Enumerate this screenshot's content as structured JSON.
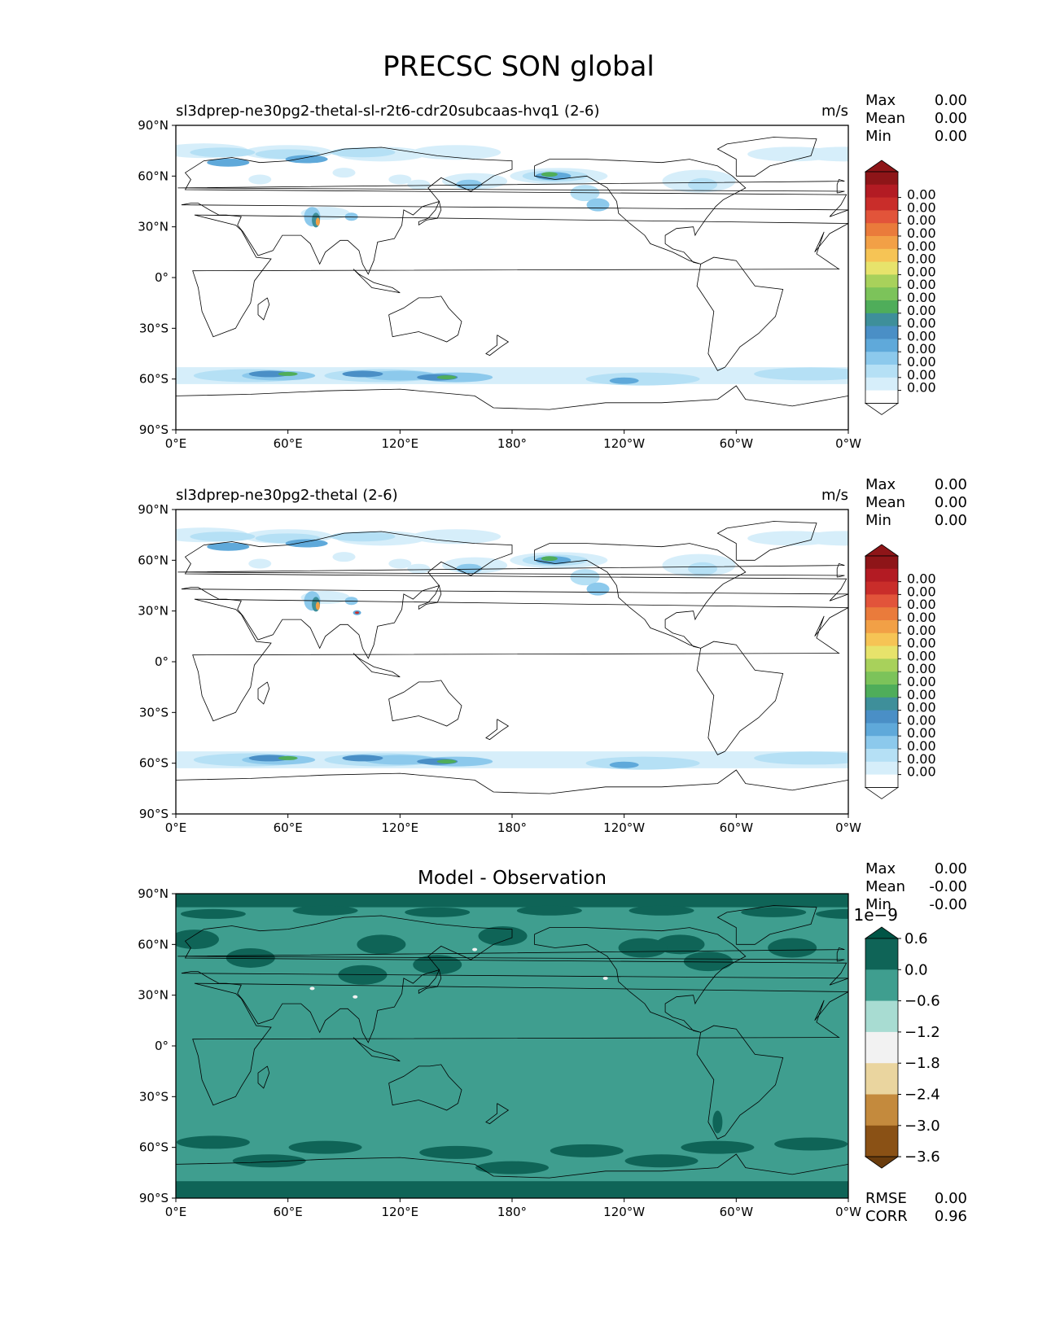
{
  "figure_title": "PRECSC SON global",
  "colors": {
    "precip_levels": [
      "#ffffff",
      "#d6eefa",
      "#b5e0f5",
      "#8cc9ec",
      "#5fa9da",
      "#4a8fc6",
      "#3e8f9a",
      "#4fad5a",
      "#7cc35a",
      "#a8d15b",
      "#e7e36b",
      "#f6c455",
      "#f2a046",
      "#ea7b3b",
      "#e2543a",
      "#c92d2a",
      "#b31b23",
      "#8e1518"
    ],
    "diff_levels": [
      "#6a3c0d",
      "#8a5115",
      "#c48a3d",
      "#ead59f",
      "#f2f2f2",
      "#a8dcd2",
      "#3f9e8f",
      "#0f6457",
      "#005546"
    ],
    "ocean_diff": "#3f9e8f",
    "anomaly_dark": "#0f6457"
  },
  "chart_data": [
    {
      "type": "heatmap",
      "title": "sl3dprep-ne30pg2-thetal-sl-r2t6-cdr20subcaas-hvq1 (2-6)",
      "units": "m/s",
      "stats": [
        {
          "label": "Max",
          "value": "0.00"
        },
        {
          "label": "Mean",
          "value": "0.00"
        },
        {
          "label": "Min",
          "value": "0.00"
        }
      ],
      "xticks": [
        "0°E",
        "60°E",
        "120°E",
        "180°",
        "120°W",
        "60°W",
        "0°W"
      ],
      "yticks": [
        "90°N",
        "60°N",
        "30°N",
        "0°",
        "30°S",
        "60°S",
        "90°S"
      ],
      "xlim": [
        0,
        360
      ],
      "ylim": [
        -90,
        90
      ],
      "colorbar_ticks": [
        "0.00",
        "0.00",
        "0.00",
        "0.00",
        "0.00",
        "0.00",
        "0.00",
        "0.00",
        "0.00",
        "0.00",
        "0.00",
        "0.00",
        "0.00",
        "0.00",
        "0.00",
        "0.00"
      ],
      "colorbar_extend": "both"
    },
    {
      "type": "heatmap",
      "title": "sl3dprep-ne30pg2-thetal (2-6)",
      "units": "m/s",
      "stats": [
        {
          "label": "Max",
          "value": "0.00"
        },
        {
          "label": "Mean",
          "value": "0.00"
        },
        {
          "label": "Min",
          "value": "0.00"
        }
      ],
      "xticks": [
        "0°E",
        "60°E",
        "120°E",
        "180°",
        "120°W",
        "60°W",
        "0°W"
      ],
      "yticks": [
        "90°N",
        "60°N",
        "30°N",
        "0°",
        "30°S",
        "60°S",
        "90°S"
      ],
      "xlim": [
        0,
        360
      ],
      "ylim": [
        -90,
        90
      ],
      "colorbar_ticks": [
        "0.00",
        "0.00",
        "0.00",
        "0.00",
        "0.00",
        "0.00",
        "0.00",
        "0.00",
        "0.00",
        "0.00",
        "0.00",
        "0.00",
        "0.00",
        "0.00",
        "0.00",
        "0.00"
      ],
      "colorbar_extend": "both"
    },
    {
      "type": "heatmap",
      "title": "Model - Observation",
      "units": "",
      "stats": [
        {
          "label": "Max",
          "value": "0.00"
        },
        {
          "label": "Mean",
          "value": "-0.00"
        },
        {
          "label": "Min",
          "value": "-0.00"
        }
      ],
      "bottom_stats": [
        {
          "label": "RMSE",
          "value": "0.00"
        },
        {
          "label": "CORR",
          "value": "0.96"
        }
      ],
      "xticks": [
        "0°E",
        "60°E",
        "120°E",
        "180°",
        "120°W",
        "60°W",
        "0°W"
      ],
      "yticks": [
        "90°N",
        "60°N",
        "30°N",
        "0°",
        "30°S",
        "60°S",
        "90°S"
      ],
      "xlim": [
        0,
        360
      ],
      "ylim": [
        -90,
        90
      ],
      "colorbar_scale_label": "1e−9",
      "colorbar_ticks": [
        "0.6",
        "0.0",
        "−0.6",
        "−1.2",
        "−1.8",
        "−2.4",
        "−3.0",
        "−3.6"
      ],
      "colorbar_extend": "both"
    }
  ]
}
